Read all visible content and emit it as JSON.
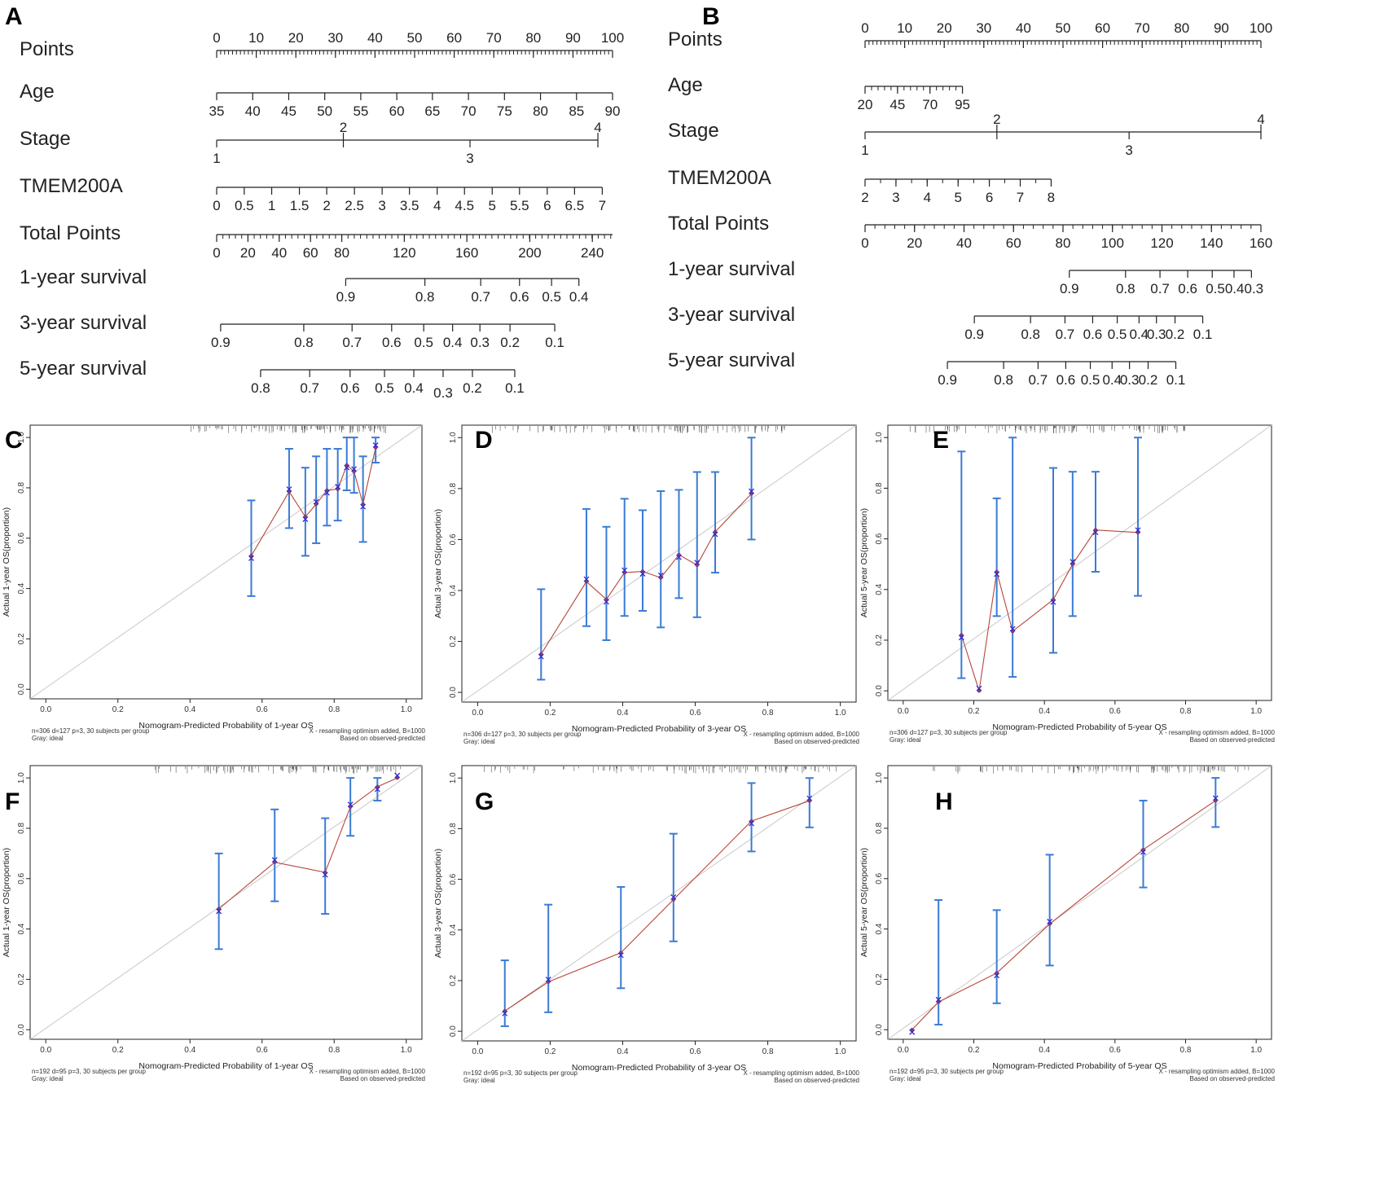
{
  "figure": {
    "panel_letters": [
      "A",
      "B",
      "C",
      "D",
      "E",
      "F",
      "G",
      "H"
    ]
  },
  "chart_data": [
    {
      "type": "nomogram",
      "panel": "A",
      "point_range": [
        0,
        100
      ],
      "variables": [
        {
          "name": "Points",
          "labels": [
            "0",
            "10",
            "20",
            "30",
            "40",
            "50",
            "60",
            "70",
            "80",
            "90",
            "100"
          ],
          "positions": [
            0,
            10,
            20,
            30,
            40,
            50,
            60,
            70,
            80,
            90,
            100
          ],
          "minor_step": 1,
          "label_side": "above"
        },
        {
          "name": "Age",
          "labels": [
            "35",
            "40",
            "45",
            "50",
            "55",
            "60",
            "65",
            "70",
            "75",
            "80",
            "85",
            "90"
          ],
          "positions": [
            0,
            9.1,
            18.2,
            27.3,
            36.4,
            45.5,
            54.5,
            63.6,
            72.7,
            81.8,
            90.9,
            100
          ],
          "minor_step": 0,
          "label_side": "below"
        },
        {
          "name": "Stage",
          "labels": [
            "1",
            "2",
            "3",
            "4"
          ],
          "positions": [
            0,
            32,
            64,
            96.3
          ],
          "label_sides": [
            "below",
            "above",
            "below",
            "above"
          ]
        },
        {
          "name": "TMEM200A",
          "labels": [
            "0",
            "0.5",
            "1",
            "1.5",
            "2",
            "2.5",
            "3",
            "3.5",
            "4",
            "4.5",
            "5",
            "5.5",
            "6",
            "6.5",
            "7"
          ],
          "positions": [
            0,
            6.96,
            13.9,
            20.9,
            27.8,
            34.8,
            41.8,
            48.7,
            55.7,
            62.6,
            69.6,
            76.5,
            83.5,
            90.4,
            97.4
          ],
          "label_side": "below"
        },
        {
          "name": "Total Points",
          "labels": [
            "0",
            "20",
            "40",
            "60",
            "80",
            "120",
            "160",
            "200",
            "240"
          ],
          "positions": [
            0,
            7.9,
            15.8,
            23.7,
            31.6,
            47.4,
            63.2,
            79.1,
            94.9
          ],
          "minor_step": 1.58,
          "axis_end": 100,
          "label_side": "below"
        },
        {
          "name": "1-year survival",
          "labels": [
            "0.9",
            "0.8",
            "0.7",
            "0.6",
            "0.5",
            "0.4"
          ],
          "positions": [
            32.6,
            52.6,
            66.7,
            76.5,
            84.6,
            91.5
          ],
          "label_side": "below"
        },
        {
          "name": "3-year survival",
          "labels": [
            "0.9",
            "0.8",
            "0.7",
            "0.6",
            "0.5",
            "0.4",
            "0.3",
            "0.2",
            "0.1"
          ],
          "positions": [
            1,
            22,
            34.2,
            44.2,
            52.3,
            59.6,
            66.5,
            74.1,
            85.4
          ],
          "label_side": "below",
          "stagger": []
        },
        {
          "name": "5-year survival",
          "labels": [
            "0.8",
            "0.7",
            "0.6",
            "0.5",
            "0.4",
            "0.3",
            "0.2",
            "0.1"
          ],
          "positions": [
            11.1,
            23.5,
            33.7,
            42.4,
            49.8,
            57.2,
            64.6,
            75.3
          ],
          "label_side": "below",
          "stagger": [
            5
          ]
        }
      ]
    },
    {
      "type": "nomogram",
      "panel": "B",
      "point_range": [
        0,
        100
      ],
      "variables": [
        {
          "name": "Points",
          "labels": [
            "0",
            "10",
            "20",
            "30",
            "40",
            "50",
            "60",
            "70",
            "80",
            "90",
            "100"
          ],
          "positions": [
            0,
            10,
            20,
            30,
            40,
            50,
            60,
            70,
            80,
            90,
            100
          ],
          "minor_step": 1,
          "label_side": "above"
        },
        {
          "name": "Age",
          "labels": [
            "20",
            "45",
            "70",
            "95"
          ],
          "positions": [
            0,
            8.2,
            16.4,
            24.6
          ],
          "minor_step": 1.64,
          "label_side": "below"
        },
        {
          "name": "Stage",
          "labels": [
            "1",
            "2",
            "3",
            "4"
          ],
          "positions": [
            0,
            33.3,
            66.7,
            100
          ],
          "label_sides": [
            "below",
            "above",
            "below",
            "above"
          ]
        },
        {
          "name": "TMEM200A",
          "labels": [
            "2",
            "3",
            "4",
            "5",
            "6",
            "7",
            "8"
          ],
          "positions": [
            0,
            7.8,
            15.7,
            23.5,
            31.4,
            39.2,
            47
          ],
          "minor_step": 3.92,
          "label_side": "below"
        },
        {
          "name": "Total Points",
          "labels": [
            "0",
            "20",
            "40",
            "60",
            "80",
            "100",
            "120",
            "140",
            "160"
          ],
          "positions": [
            0,
            12.5,
            25,
            37.5,
            50,
            62.5,
            75,
            87.5,
            100
          ],
          "minor_step": 2.5,
          "label_side": "below"
        },
        {
          "name": "1-year survival",
          "labels": [
            "0.9",
            "0.8",
            "0.7",
            "0.6",
            "0.5",
            "0.4",
            "0.3"
          ],
          "positions": [
            51.6,
            65.8,
            74.5,
            81.5,
            87.7,
            93.2,
            97.6
          ],
          "tick_labels": [
            "0.9",
            "0.8",
            "0.7",
            "0.6",
            "0.50.40.3"
          ],
          "label_side": "below"
        },
        {
          "name": "3-year survival",
          "labels": [
            "0.9",
            "0.8",
            "0.7",
            "0.6",
            "0.5",
            "0.4",
            "0.3",
            "0.2",
            "0.1"
          ],
          "positions": [
            27.6,
            41.8,
            50.5,
            57.5,
            63.7,
            69.2,
            73.6,
            78.3,
            85.3
          ],
          "label_side": "below"
        },
        {
          "name": "5-year survival",
          "labels": [
            "0.9",
            "0.8",
            "0.7",
            "0.6",
            "0.5",
            "0.4",
            "0.3",
            "0.2",
            "0.1"
          ],
          "positions": [
            20.8,
            35,
            43.7,
            50.7,
            56.9,
            62.4,
            66.8,
            71.5,
            78.5
          ],
          "label_side": "below"
        }
      ]
    },
    {
      "type": "calibration",
      "panel": "C",
      "xlabel": "Nomogram-Predicted Probability of 1-year OS",
      "ylabel": "Actual 1-year OS(proportion)",
      "xlim": [
        0,
        1
      ],
      "ylim": [
        0,
        1
      ],
      "ticks": [
        "0.0",
        "0.2",
        "0.4",
        "0.6",
        "0.8",
        "1.0"
      ],
      "note_left": [
        "n=306 d=127 p=3, 30 subjects per group",
        "Gray: ideal"
      ],
      "note_right": [
        "X - resampling optimism added, B=1000",
        "Based on observed-predicted"
      ],
      "points": [
        {
          "x": 0.57,
          "y": 0.53,
          "lo": 0.37,
          "hi": 0.75
        },
        {
          "x": 0.675,
          "y": 0.785,
          "lo": 0.64,
          "hi": 0.955
        },
        {
          "x": 0.72,
          "y": 0.685,
          "lo": 0.53,
          "hi": 0.88
        },
        {
          "x": 0.75,
          "y": 0.735,
          "lo": 0.58,
          "hi": 0.925
        },
        {
          "x": 0.78,
          "y": 0.79,
          "lo": 0.65,
          "hi": 0.955
        },
        {
          "x": 0.81,
          "y": 0.795,
          "lo": 0.67,
          "hi": 0.955
        },
        {
          "x": 0.835,
          "y": 0.89,
          "lo": 0.79,
          "hi": 1.0
        },
        {
          "x": 0.855,
          "y": 0.865,
          "lo": 0.78,
          "hi": 1.0
        },
        {
          "x": 0.88,
          "y": 0.735,
          "lo": 0.585,
          "hi": 0.925
        },
        {
          "x": 0.915,
          "y": 0.96,
          "lo": 0.9,
          "hi": 1.0
        }
      ],
      "rug": {
        "from": 0.4,
        "to": 0.95
      }
    },
    {
      "type": "calibration",
      "panel": "D",
      "xlabel": "Nomogram-Predicted Probability of 3-year OS",
      "ylabel": "Actual 3-year OS(proportion)",
      "xlim": [
        0,
        1
      ],
      "ylim": [
        0,
        1
      ],
      "ticks": [
        "0.0",
        "0.2",
        "0.4",
        "0.6",
        "0.8",
        "1.0"
      ],
      "note_left": [
        "n=306 d=127 p=3, 30 subjects per group",
        "Gray: ideal"
      ],
      "note_right": [
        "X - resampling optimism added, B=1000",
        "Based on observed-predicted"
      ],
      "points": [
        {
          "x": 0.175,
          "y": 0.15,
          "lo": 0.05,
          "hi": 0.405
        },
        {
          "x": 0.3,
          "y": 0.435,
          "lo": 0.26,
          "hi": 0.72
        },
        {
          "x": 0.355,
          "y": 0.365,
          "lo": 0.205,
          "hi": 0.65
        },
        {
          "x": 0.405,
          "y": 0.47,
          "lo": 0.3,
          "hi": 0.76
        },
        {
          "x": 0.455,
          "y": 0.475,
          "lo": 0.32,
          "hi": 0.715
        },
        {
          "x": 0.505,
          "y": 0.45,
          "lo": 0.255,
          "hi": 0.79
        },
        {
          "x": 0.555,
          "y": 0.54,
          "lo": 0.37,
          "hi": 0.795
        },
        {
          "x": 0.605,
          "y": 0.5,
          "lo": 0.295,
          "hi": 0.865
        },
        {
          "x": 0.655,
          "y": 0.63,
          "lo": 0.47,
          "hi": 0.865
        },
        {
          "x": 0.755,
          "y": 0.78,
          "lo": 0.6,
          "hi": 1.0
        }
      ],
      "rug": {
        "from": 0.03,
        "to": 0.85
      }
    },
    {
      "type": "calibration",
      "panel": "E",
      "xlabel": "Nomogram-Predicted Probability of 5-year OS",
      "ylabel": "Actual 5-year OS(proportion)",
      "xlim": [
        0,
        1
      ],
      "ylim": [
        0,
        1
      ],
      "ticks": [
        "0.0",
        "0.2",
        "0.4",
        "0.6",
        "0.8",
        "1.0"
      ],
      "note_left": [
        "n=306 d=127 p=3, 30 subjects per group",
        "Gray: ideal"
      ],
      "note_right": [
        "X - resampling optimism added, B=1000",
        "Based on observed-predicted"
      ],
      "points": [
        {
          "x": 0.165,
          "y": 0.22,
          "lo": 0.05,
          "hi": 0.945
        },
        {
          "x": 0.215,
          "y": 0.0,
          "lo": 0.0,
          "hi": 0.0
        },
        {
          "x": 0.265,
          "y": 0.47,
          "lo": 0.295,
          "hi": 0.76
        },
        {
          "x": 0.31,
          "y": 0.235,
          "lo": 0.055,
          "hi": 1.0
        },
        {
          "x": 0.425,
          "y": 0.36,
          "lo": 0.15,
          "hi": 0.88
        },
        {
          "x": 0.48,
          "y": 0.5,
          "lo": 0.295,
          "hi": 0.865
        },
        {
          "x": 0.545,
          "y": 0.635,
          "lo": 0.47,
          "hi": 0.865
        },
        {
          "x": 0.665,
          "y": 0.625,
          "lo": 0.375,
          "hi": 1.0
        }
      ],
      "rug": {
        "from": 0.01,
        "to": 0.8
      }
    },
    {
      "type": "calibration",
      "panel": "F",
      "xlabel": "Nomogram-Predicted Probability of 1-year OS",
      "ylabel": "Actual 1-year OS(proportion)",
      "xlim": [
        0,
        1
      ],
      "ylim": [
        0,
        1
      ],
      "ticks": [
        "0.0",
        "0.2",
        "0.4",
        "0.6",
        "0.8",
        "1.0"
      ],
      "note_left": [
        "n=192 d=95 p=3, 30 subjects per group",
        "Gray: ideal"
      ],
      "note_right": [
        "X - resampling optimism added, B=1000",
        "Based on observed-predicted"
      ],
      "points": [
        {
          "x": 0.48,
          "y": 0.48,
          "lo": 0.32,
          "hi": 0.7
        },
        {
          "x": 0.635,
          "y": 0.665,
          "lo": 0.51,
          "hi": 0.875
        },
        {
          "x": 0.775,
          "y": 0.625,
          "lo": 0.46,
          "hi": 0.84
        },
        {
          "x": 0.845,
          "y": 0.885,
          "lo": 0.77,
          "hi": 1.0
        },
        {
          "x": 0.92,
          "y": 0.965,
          "lo": 0.91,
          "hi": 1.0
        },
        {
          "x": 0.975,
          "y": 1.0,
          "lo": 1.0,
          "hi": 1.0
        }
      ],
      "rug": {
        "from": 0.3,
        "to": 0.99
      }
    },
    {
      "type": "calibration",
      "panel": "G",
      "xlabel": "Nomogram-Predicted Probability of 3-year OS",
      "ylabel": "Actual 3-year OS(proportion)",
      "xlim": [
        0,
        1
      ],
      "ylim": [
        0,
        1
      ],
      "ticks": [
        "0.0",
        "0.2",
        "0.4",
        "0.6",
        "0.8",
        "1.0"
      ],
      "note_left": [
        "n=192 d=95 p=3, 30 subjects per group",
        "Gray: ideal"
      ],
      "note_right": [
        "X - resampling optimism added, B=1000",
        "Based on observed-predicted"
      ],
      "points": [
        {
          "x": 0.075,
          "y": 0.08,
          "lo": 0.02,
          "hi": 0.28
        },
        {
          "x": 0.195,
          "y": 0.195,
          "lo": 0.075,
          "hi": 0.5
        },
        {
          "x": 0.395,
          "y": 0.31,
          "lo": 0.17,
          "hi": 0.57
        },
        {
          "x": 0.54,
          "y": 0.52,
          "lo": 0.355,
          "hi": 0.78
        },
        {
          "x": 0.755,
          "y": 0.83,
          "lo": 0.71,
          "hi": 0.98
        },
        {
          "x": 0.915,
          "y": 0.91,
          "lo": 0.805,
          "hi": 1.0
        }
      ],
      "rug": {
        "from": 0.01,
        "to": 0.99
      }
    },
    {
      "type": "calibration",
      "panel": "H",
      "xlabel": "Nomogram-Predicted Probability of 5-year OS",
      "ylabel": "Actual 5-year OS(proportion)",
      "xlim": [
        0,
        1
      ],
      "ylim": [
        0,
        1
      ],
      "ticks": [
        "0.0",
        "0.2",
        "0.4",
        "0.6",
        "0.8",
        "1.0"
      ],
      "note_left": [
        "n=192 d=95 p=3, 30 subjects per group",
        "Gray: ideal"
      ],
      "note_right": [
        "X - resampling optimism added, B=1000",
        "Based on observed-predicted"
      ],
      "points": [
        {
          "x": 0.025,
          "y": 0.0,
          "lo": 0.0,
          "hi": 0.0
        },
        {
          "x": 0.1,
          "y": 0.11,
          "lo": 0.02,
          "hi": 0.515
        },
        {
          "x": 0.265,
          "y": 0.225,
          "lo": 0.105,
          "hi": 0.475
        },
        {
          "x": 0.415,
          "y": 0.42,
          "lo": 0.255,
          "hi": 0.695
        },
        {
          "x": 0.68,
          "y": 0.715,
          "lo": 0.565,
          "hi": 0.91
        },
        {
          "x": 0.885,
          "y": 0.91,
          "lo": 0.805,
          "hi": 1.0
        }
      ],
      "rug": {
        "from": 0.01,
        "to": 0.99
      }
    }
  ]
}
